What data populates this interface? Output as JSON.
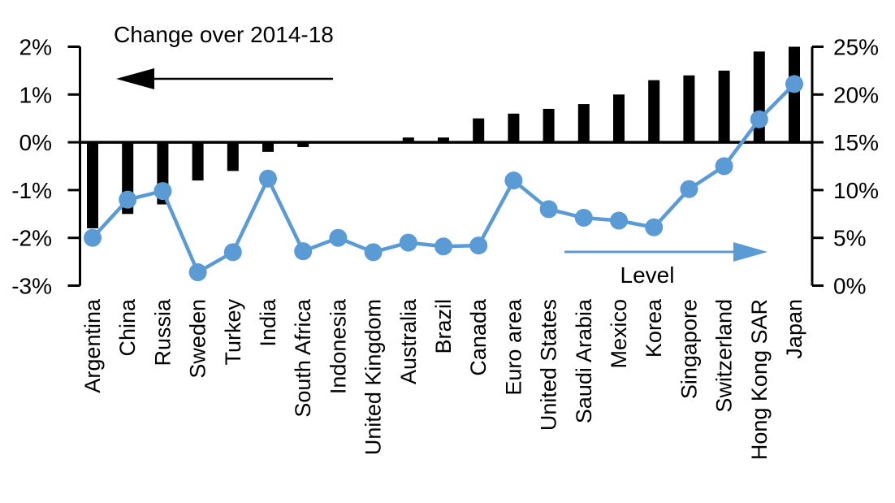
{
  "chart_data": {
    "type": "combo-bar-line",
    "title": "",
    "categories": [
      "Argentina",
      "China",
      "Russia",
      "Sweden",
      "Turkey",
      "India",
      "South Africa",
      "Indonesia",
      "United Kingdom",
      "Australia",
      "Brazil",
      "Canada",
      "Euro area",
      "United States",
      "Saudi Arabia",
      "Mexico",
      "Korea",
      "Singapore",
      "Switzerland",
      "Hong Kong SAR",
      "Japan"
    ],
    "series": [
      {
        "name": "Change over 2014-18",
        "type": "bar",
        "axis": "left",
        "color": "#000000",
        "values": [
          -1.8,
          -1.5,
          -1.3,
          -0.8,
          -0.6,
          -0.2,
          -0.1,
          0.0,
          0.0,
          0.1,
          0.1,
          0.5,
          0.6,
          0.7,
          0.8,
          1.0,
          1.3,
          1.4,
          1.5,
          1.9,
          2.0
        ]
      },
      {
        "name": "Level",
        "type": "line",
        "axis": "right",
        "color": "#5B9BD5",
        "values": [
          5.0,
          9.0,
          9.9,
          1.4,
          3.5,
          11.2,
          3.6,
          5.0,
          3.5,
          4.5,
          4.1,
          4.2,
          11.0,
          8.0,
          7.1,
          6.8,
          6.1,
          10.1,
          12.5,
          17.4,
          21.1
        ]
      }
    ],
    "left_axis": {
      "min": -3,
      "max": 2,
      "ticks": [
        {
          "label": "2%",
          "value": 2
        },
        {
          "label": "1%",
          "value": 1
        },
        {
          "label": "0%",
          "value": 0
        },
        {
          "label": "-1%",
          "value": -1
        },
        {
          "label": "-2%",
          "value": -2
        },
        {
          "label": "-3%",
          "value": -3
        }
      ]
    },
    "right_axis": {
      "min": 0,
      "max": 25,
      "ticks": [
        {
          "label": "25%",
          "value": 25
        },
        {
          "label": "20%",
          "value": 20
        },
        {
          "label": "15%",
          "value": 15
        },
        {
          "label": "10%",
          "value": 10
        },
        {
          "label": "5%",
          "value": 5
        },
        {
          "label": "0%",
          "value": 0
        }
      ]
    },
    "annotations": {
      "change_label": "Change over 2014-18",
      "level_label": "Level"
    },
    "layout_hints": {
      "grid": false,
      "zero_line": true,
      "bar_arrow_direction": "left",
      "line_arrow_direction": "right"
    },
    "colors": {
      "bar": "#000000",
      "line": "#5B9BD5",
      "background": "#ffffff"
    }
  }
}
